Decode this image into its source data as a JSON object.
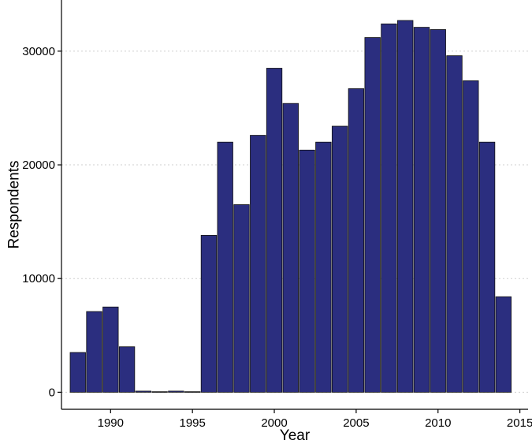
{
  "chart_data": {
    "type": "bar",
    "title": "",
    "xlabel": "Year",
    "ylabel": "Respondents",
    "x": [
      1988,
      1989,
      1990,
      1991,
      1992,
      1993,
      1994,
      1995,
      1996,
      1997,
      1998,
      1999,
      2000,
      2001,
      2002,
      2003,
      2004,
      2005,
      2006,
      2007,
      2008,
      2009,
      2010,
      2011,
      2012,
      2013,
      2014
    ],
    "values": [
      3500,
      7100,
      7500,
      4000,
      100,
      50,
      100,
      50,
      13800,
      22000,
      16500,
      22600,
      28500,
      25400,
      21300,
      22000,
      23400,
      26700,
      31200,
      32400,
      32700,
      32100,
      31900,
      29600,
      27400,
      22000,
      8400
    ],
    "xlim": [
      1987,
      2015.5
    ],
    "ylim": [
      -1500,
      34500
    ],
    "x_ticks": [
      1990,
      1995,
      2000,
      2005,
      2010,
      2015
    ],
    "y_ticks": [
      0,
      10000,
      20000,
      30000
    ],
    "x_tick_labels": [
      "1990",
      "1995",
      "2000",
      "2005",
      "2010",
      "2015"
    ],
    "y_tick_labels": [
      "0",
      "10000",
      "20000",
      "30000"
    ],
    "bar_color": "#2b2e7f",
    "grid": "horizontal-dotted",
    "legend": "none"
  }
}
